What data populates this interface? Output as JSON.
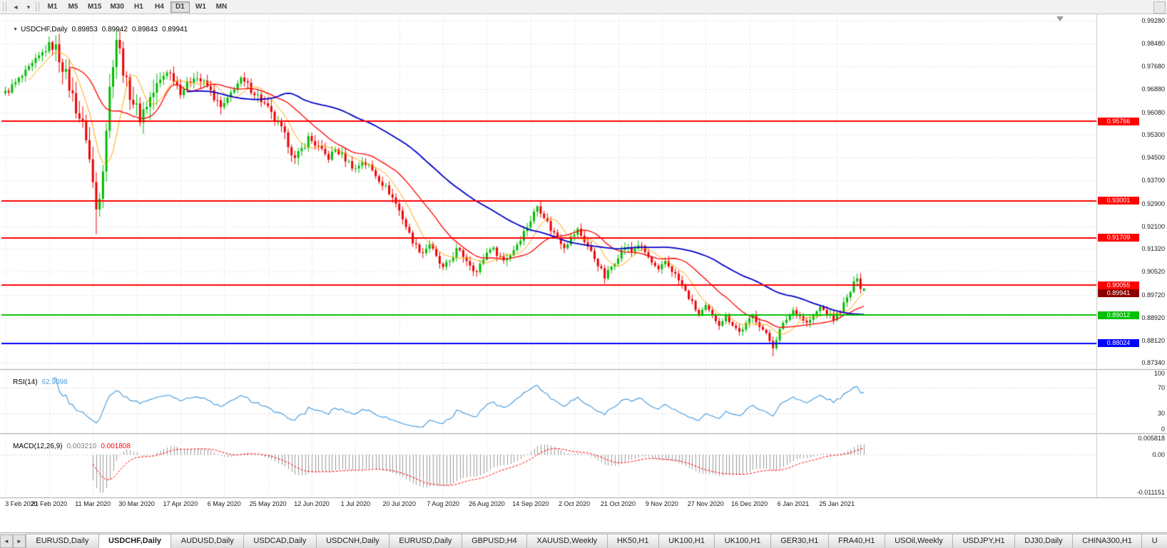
{
  "toolbar": {
    "back_icon": "◄",
    "dropdown_icon": "▾",
    "overflow_icon": "▾",
    "timeframes": [
      "M1",
      "M5",
      "M15",
      "M30",
      "H1",
      "H4",
      "D1",
      "W1",
      "MN"
    ],
    "active_timeframe": "D1"
  },
  "chart": {
    "collapse_icon": "▼",
    "symbol": "USDCHF,Daily",
    "ohlc": {
      "open": "0.89853",
      "high": "0.89942",
      "low": "0.89843",
      "close": "0.89941"
    }
  },
  "price_axis": {
    "labels": [
      "0.99280",
      "0.98480",
      "0.97680",
      "0.96880",
      "0.96080",
      "0.95300",
      "0.94500",
      "0.93700",
      "0.92900",
      "0.92100",
      "0.91320",
      "0.90520",
      "0.89720",
      "0.88920",
      "0.88120",
      "0.87340"
    ]
  },
  "date_axis": {
    "labels": [
      "3 Feb 2020",
      "21 Feb 2020",
      "11 Mar 2020",
      "30 Mar 2020",
      "17 Apr 2020",
      "6 May 2020",
      "25 May 2020",
      "12 Jun 2020",
      "1 Jul 2020",
      "20 Jul 2020",
      "7 Aug 2020",
      "26 Aug 2020",
      "14 Sep 2020",
      "2 Oct 2020",
      "21 Oct 2020",
      "9 Nov 2020",
      "27 Nov 2020",
      "16 Dec 2020",
      "6 Jan 2021",
      "25 Jan 2021"
    ],
    "bars_per_label": 13
  },
  "lines": [
    {
      "value": 0.95766,
      "label": "0.95766",
      "color": "#FF0000"
    },
    {
      "value": 0.93001,
      "label": "0.93001",
      "color": "#FF0000"
    },
    {
      "value": 0.91709,
      "label": "0.91709",
      "color": "#FF0000"
    },
    {
      "value": 0.90055,
      "label": "0.90055",
      "color": "#FF0000"
    },
    {
      "value": 0.89012,
      "label": "0.89012",
      "color": "#00C000"
    },
    {
      "value": 0.88024,
      "label": "0.88024",
      "color": "#0000FF"
    }
  ],
  "current_price": {
    "value": 0.89941,
    "label": "0.89941",
    "color": "#8B0000"
  },
  "rsi": {
    "title": "RSI(14)",
    "value": "62.9098",
    "period": 14,
    "color": "#4E9FDD",
    "axis_labels": [
      "100",
      "70",
      "30",
      "0"
    ],
    "level_lines": [
      70,
      30
    ]
  },
  "macd": {
    "title": "MACD(12,26,9)",
    "main_value": "0.003210",
    "signal_value": "0.001808",
    "fast": 12,
    "slow": 26,
    "signal": 9,
    "axis": {
      "top": "0.005818",
      "zero": "0.00",
      "bottom": "-0.011151"
    },
    "range": {
      "max": 0.005818,
      "min": -0.011151
    },
    "histogram_color": "#9a9a9a",
    "signal_color": "#FF0000"
  },
  "chart_data": {
    "type": "candlestick",
    "symbol": "USDCHF",
    "timeframe": "Daily",
    "bars_total": 256,
    "price_range": {
      "top": 0.9945,
      "bottom": 0.8715
    },
    "anchors": [
      [
        0,
        0.9675
      ],
      [
        3,
        0.971
      ],
      [
        6,
        0.9745
      ],
      [
        10,
        0.98
      ],
      [
        13,
        0.9842
      ],
      [
        15,
        0.9828
      ],
      [
        17,
        0.9772
      ],
      [
        19,
        0.97
      ],
      [
        21,
        0.9625
      ],
      [
        24,
        0.9525
      ],
      [
        26,
        0.936
      ],
      [
        27,
        0.927
      ],
      [
        28,
        0.933
      ],
      [
        29,
        0.9425
      ],
      [
        30,
        0.9555
      ],
      [
        31,
        0.969
      ],
      [
        32,
        0.979
      ],
      [
        33,
        0.9868
      ],
      [
        34,
        0.9818
      ],
      [
        35,
        0.976
      ],
      [
        36,
        0.9705
      ],
      [
        38,
        0.9645
      ],
      [
        40,
        0.9592
      ],
      [
        42,
        0.9638
      ],
      [
        44,
        0.9678
      ],
      [
        46,
        0.9718
      ],
      [
        48,
        0.9755
      ],
      [
        50,
        0.9728
      ],
      [
        52,
        0.9682
      ],
      [
        54,
        0.9702
      ],
      [
        56,
        0.9738
      ],
      [
        58,
        0.9718
      ],
      [
        60,
        0.9698
      ],
      [
        62,
        0.966
      ],
      [
        64,
        0.9622
      ],
      [
        66,
        0.9648
      ],
      [
        68,
        0.9698
      ],
      [
        70,
        0.9718
      ],
      [
        72,
        0.97
      ],
      [
        74,
        0.9678
      ],
      [
        76,
        0.965
      ],
      [
        78,
        0.9618
      ],
      [
        80,
        0.958
      ],
      [
        82,
        0.9548
      ],
      [
        84,
        0.95
      ],
      [
        86,
        0.9442
      ],
      [
        88,
        0.9478
      ],
      [
        90,
        0.9518
      ],
      [
        92,
        0.9498
      ],
      [
        94,
        0.9468
      ],
      [
        96,
        0.945
      ],
      [
        98,
        0.9478
      ],
      [
        100,
        0.9458
      ],
      [
        102,
        0.9432
      ],
      [
        104,
        0.941
      ],
      [
        106,
        0.9438
      ],
      [
        108,
        0.942
      ],
      [
        110,
        0.939
      ],
      [
        112,
        0.936
      ],
      [
        114,
        0.933
      ],
      [
        116,
        0.929
      ],
      [
        118,
        0.924
      ],
      [
        120,
        0.9182
      ],
      [
        122,
        0.914
      ],
      [
        124,
        0.912
      ],
      [
        126,
        0.915
      ],
      [
        128,
        0.91
      ],
      [
        130,
        0.9062
      ],
      [
        132,
        0.909
      ],
      [
        134,
        0.9128
      ],
      [
        136,
        0.9108
      ],
      [
        138,
        0.908
      ],
      [
        140,
        0.905
      ],
      [
        142,
        0.9098
      ],
      [
        144,
        0.9138
      ],
      [
        146,
        0.9118
      ],
      [
        148,
        0.9092
      ],
      [
        150,
        0.9112
      ],
      [
        152,
        0.915
      ],
      [
        154,
        0.919
      ],
      [
        156,
        0.9232
      ],
      [
        158,
        0.9282
      ],
      [
        160,
        0.9248
      ],
      [
        162,
        0.92
      ],
      [
        164,
        0.9172
      ],
      [
        166,
        0.9142
      ],
      [
        168,
        0.917
      ],
      [
        170,
        0.9198
      ],
      [
        172,
        0.916
      ],
      [
        174,
        0.912
      ],
      [
        176,
        0.908
      ],
      [
        178,
        0.9032
      ],
      [
        180,
        0.907
      ],
      [
        182,
        0.9108
      ],
      [
        184,
        0.914
      ],
      [
        186,
        0.9122
      ],
      [
        188,
        0.9148
      ],
      [
        190,
        0.912
      ],
      [
        192,
        0.9082
      ],
      [
        194,
        0.9052
      ],
      [
        196,
        0.9088
      ],
      [
        198,
        0.9058
      ],
      [
        200,
        0.9022
      ],
      [
        202,
        0.8982
      ],
      [
        204,
        0.8942
      ],
      [
        206,
        0.8902
      ],
      [
        208,
        0.8928
      ],
      [
        210,
        0.8898
      ],
      [
        212,
        0.8872
      ],
      [
        214,
        0.8898
      ],
      [
        216,
        0.887
      ],
      [
        218,
        0.8842
      ],
      [
        220,
        0.8868
      ],
      [
        222,
        0.8898
      ],
      [
        224,
        0.8868
      ],
      [
        226,
        0.8832
      ],
      [
        228,
        0.8792
      ],
      [
        230,
        0.8848
      ],
      [
        232,
        0.8888
      ],
      [
        234,
        0.8918
      ],
      [
        236,
        0.8898
      ],
      [
        238,
        0.8872
      ],
      [
        240,
        0.8898
      ],
      [
        242,
        0.8928
      ],
      [
        244,
        0.8908
      ],
      [
        246,
        0.8888
      ],
      [
        248,
        0.8918
      ],
      [
        250,
        0.8958
      ],
      [
        252,
        0.9008
      ],
      [
        253,
        0.9038
      ],
      [
        254,
        0.9002
      ],
      [
        255,
        0.89941
      ]
    ],
    "volatility_zones": [
      [
        0,
        14,
        1.1
      ],
      [
        15,
        45,
        2.4
      ],
      [
        46,
        95,
        1.3
      ],
      [
        96,
        150,
        1.0
      ],
      [
        151,
        200,
        0.95
      ],
      [
        201,
        247,
        0.85
      ],
      [
        248,
        255,
        1.0
      ]
    ],
    "extremes": [
      {
        "bar": 27,
        "low": 0.9183
      },
      {
        "bar": 33,
        "high": 0.9901
      },
      {
        "bar": 228,
        "low": 0.8757
      },
      {
        "bar": 253,
        "high": 0.9046
      }
    ],
    "last_candle": {
      "o": 0.89853,
      "h": 0.89942,
      "l": 0.89843,
      "c": 0.89941
    },
    "moving_averages": [
      {
        "period": 8,
        "color": "#FFA500",
        "width": 1
      },
      {
        "period": 20,
        "color": "#FF0000",
        "width": 1.3
      },
      {
        "period": 55,
        "color": "#0000C8",
        "width": 1.8
      }
    ],
    "colors": {
      "bull": "#00BB00",
      "bear": "#EE0000"
    }
  },
  "tabs": {
    "scroll_left_icon": "◄",
    "scroll_right_icon": "►",
    "items": [
      {
        "label": "EURUSD,Daily",
        "active": false
      },
      {
        "label": "USDCHF,Daily",
        "active": true
      },
      {
        "label": "AUDUSD,Daily",
        "active": false
      },
      {
        "label": "USDCAD,Daily",
        "active": false
      },
      {
        "label": "USDCNH,Daily",
        "active": false
      },
      {
        "label": "EURUSD,Daily",
        "active": false
      },
      {
        "label": "GBPUSD,H4",
        "active": false
      },
      {
        "label": "XAUUSD,Weekly",
        "active": false
      },
      {
        "label": "HK50,H1",
        "active": false
      },
      {
        "label": "UK100,H1",
        "active": false
      },
      {
        "label": "UK100,H1",
        "active": false
      },
      {
        "label": "GER30,H1",
        "active": false
      },
      {
        "label": "FRA40,H1",
        "active": false
      },
      {
        "label": "USOil,Weekly",
        "active": false
      },
      {
        "label": "USDJPY,H1",
        "active": false
      },
      {
        "label": "DJ30,Daily",
        "active": false
      },
      {
        "label": "CHINA300,H1",
        "active": false
      },
      {
        "label": "U",
        "active": false
      }
    ]
  }
}
